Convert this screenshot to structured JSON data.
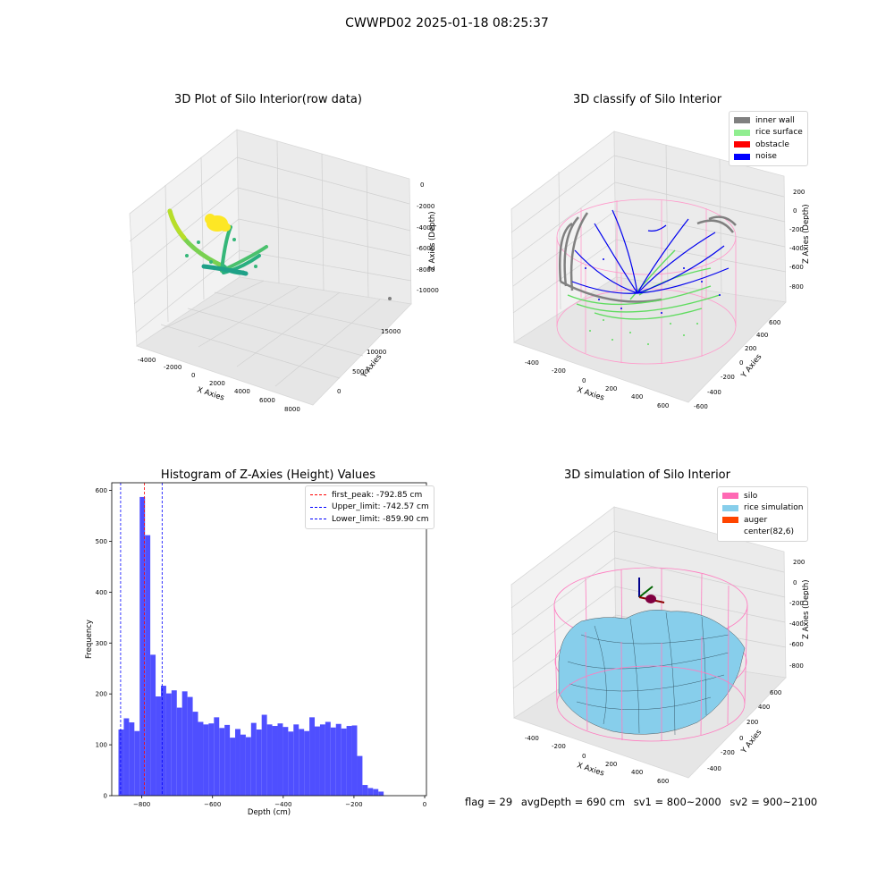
{
  "figure": {
    "suptitle": "CWWPD02 2025-01-18 08:25:37",
    "footer": {
      "flag": "flag = 29",
      "avg_depth": "avgDepth = 690 cm",
      "sv1": "sv1 = 800~2000",
      "sv2": "sv2 = 900~2100"
    }
  },
  "chart_data": [
    {
      "type": "scatter",
      "title": "3D Plot of Silo Interior(row data)",
      "xlabel": "X Axies",
      "ylabel": "Y Axies",
      "zlabel": "Z Axies (Depth)",
      "x_ticks": [
        "-4000",
        "-2000",
        "0",
        "2000",
        "4000",
        "6000",
        "8000"
      ],
      "y_ticks": [
        "0",
        "5000",
        "10000",
        "15000"
      ],
      "z_ticks": [
        "0",
        "-2000",
        "-4000",
        "-6000",
        "-8000",
        "-10000"
      ],
      "colormap": "viridis"
    },
    {
      "type": "scatter",
      "title": "3D classify of Silo Interior",
      "xlabel": "X Axies",
      "ylabel": "Y Axies",
      "zlabel": "Z Axies (Depth)",
      "x_ticks": [
        "-400",
        "-200",
        "0",
        "200",
        "400",
        "600"
      ],
      "y_ticks": [
        "-600",
        "-400",
        "-200",
        "0",
        "200",
        "400",
        "600"
      ],
      "z_ticks": [
        "200",
        "0",
        "-200",
        "-400",
        "-600",
        "-800"
      ],
      "legend": [
        {
          "label": "inner wall",
          "color": "#808080"
        },
        {
          "label": "rice surface",
          "color": "#90ee90"
        },
        {
          "label": "obstacle",
          "color": "#ff0000"
        },
        {
          "label": "noise",
          "color": "#0000ff"
        }
      ]
    },
    {
      "type": "bar",
      "title": "Histogram of Z-Axies (Height) Values",
      "xlabel": "Depth (cm)",
      "ylabel": "Frequency",
      "xlim": [
        -885,
        5
      ],
      "ylim": [
        0,
        615
      ],
      "x_ticks": [
        -800,
        -600,
        -400,
        -200,
        0
      ],
      "x_tick_labels": [
        "−800",
        "−600",
        "−400",
        "−200",
        "0"
      ],
      "y_ticks": [
        0,
        100,
        200,
        300,
        400,
        500,
        600
      ],
      "bar_color": "#4f4fff",
      "bin_start": -866,
      "bin_width": 15,
      "values": [
        130,
        152,
        144,
        127,
        587,
        512,
        277,
        195,
        216,
        201,
        207,
        173,
        205,
        194,
        165,
        145,
        140,
        142,
        154,
        133,
        139,
        114,
        131,
        120,
        115,
        143,
        130,
        159,
        140,
        137,
        142,
        135,
        126,
        140,
        131,
        127,
        154,
        136,
        140,
        145,
        134,
        141,
        132,
        137,
        138,
        78,
        21,
        15,
        13,
        8
      ],
      "vlines": [
        {
          "label": "first_peak: -792.85 cm",
          "x": -792.85,
          "color": "#ff0000"
        },
        {
          "label": "Upper_limit: -742.57 cm",
          "x": -742.57,
          "color": "#0000ff"
        },
        {
          "label": "Lower_limit: -859.90 cm",
          "x": -859.9,
          "color": "#0000ff"
        }
      ]
    },
    {
      "type": "surface",
      "title": "3D simulation of Silo Interior",
      "xlabel": "X Axies",
      "ylabel": "Y Axies",
      "zlabel": "Z Axies (Depth)",
      "x_ticks": [
        "-400",
        "-200",
        "0",
        "200",
        "400",
        "600"
      ],
      "y_ticks": [
        "-400",
        "-200",
        "0",
        "200",
        "400",
        "600"
      ],
      "z_ticks": [
        "200",
        "0",
        "-200",
        "-400",
        "-600",
        "-800"
      ],
      "legend": [
        {
          "label": "silo",
          "color": "#ff69b4"
        },
        {
          "label": "rice simulation",
          "color": "#87ceeb"
        },
        {
          "label": "auger",
          "color": "#ff4500"
        },
        {
          "label": "center(82,6)",
          "color": ""
        }
      ]
    }
  ]
}
